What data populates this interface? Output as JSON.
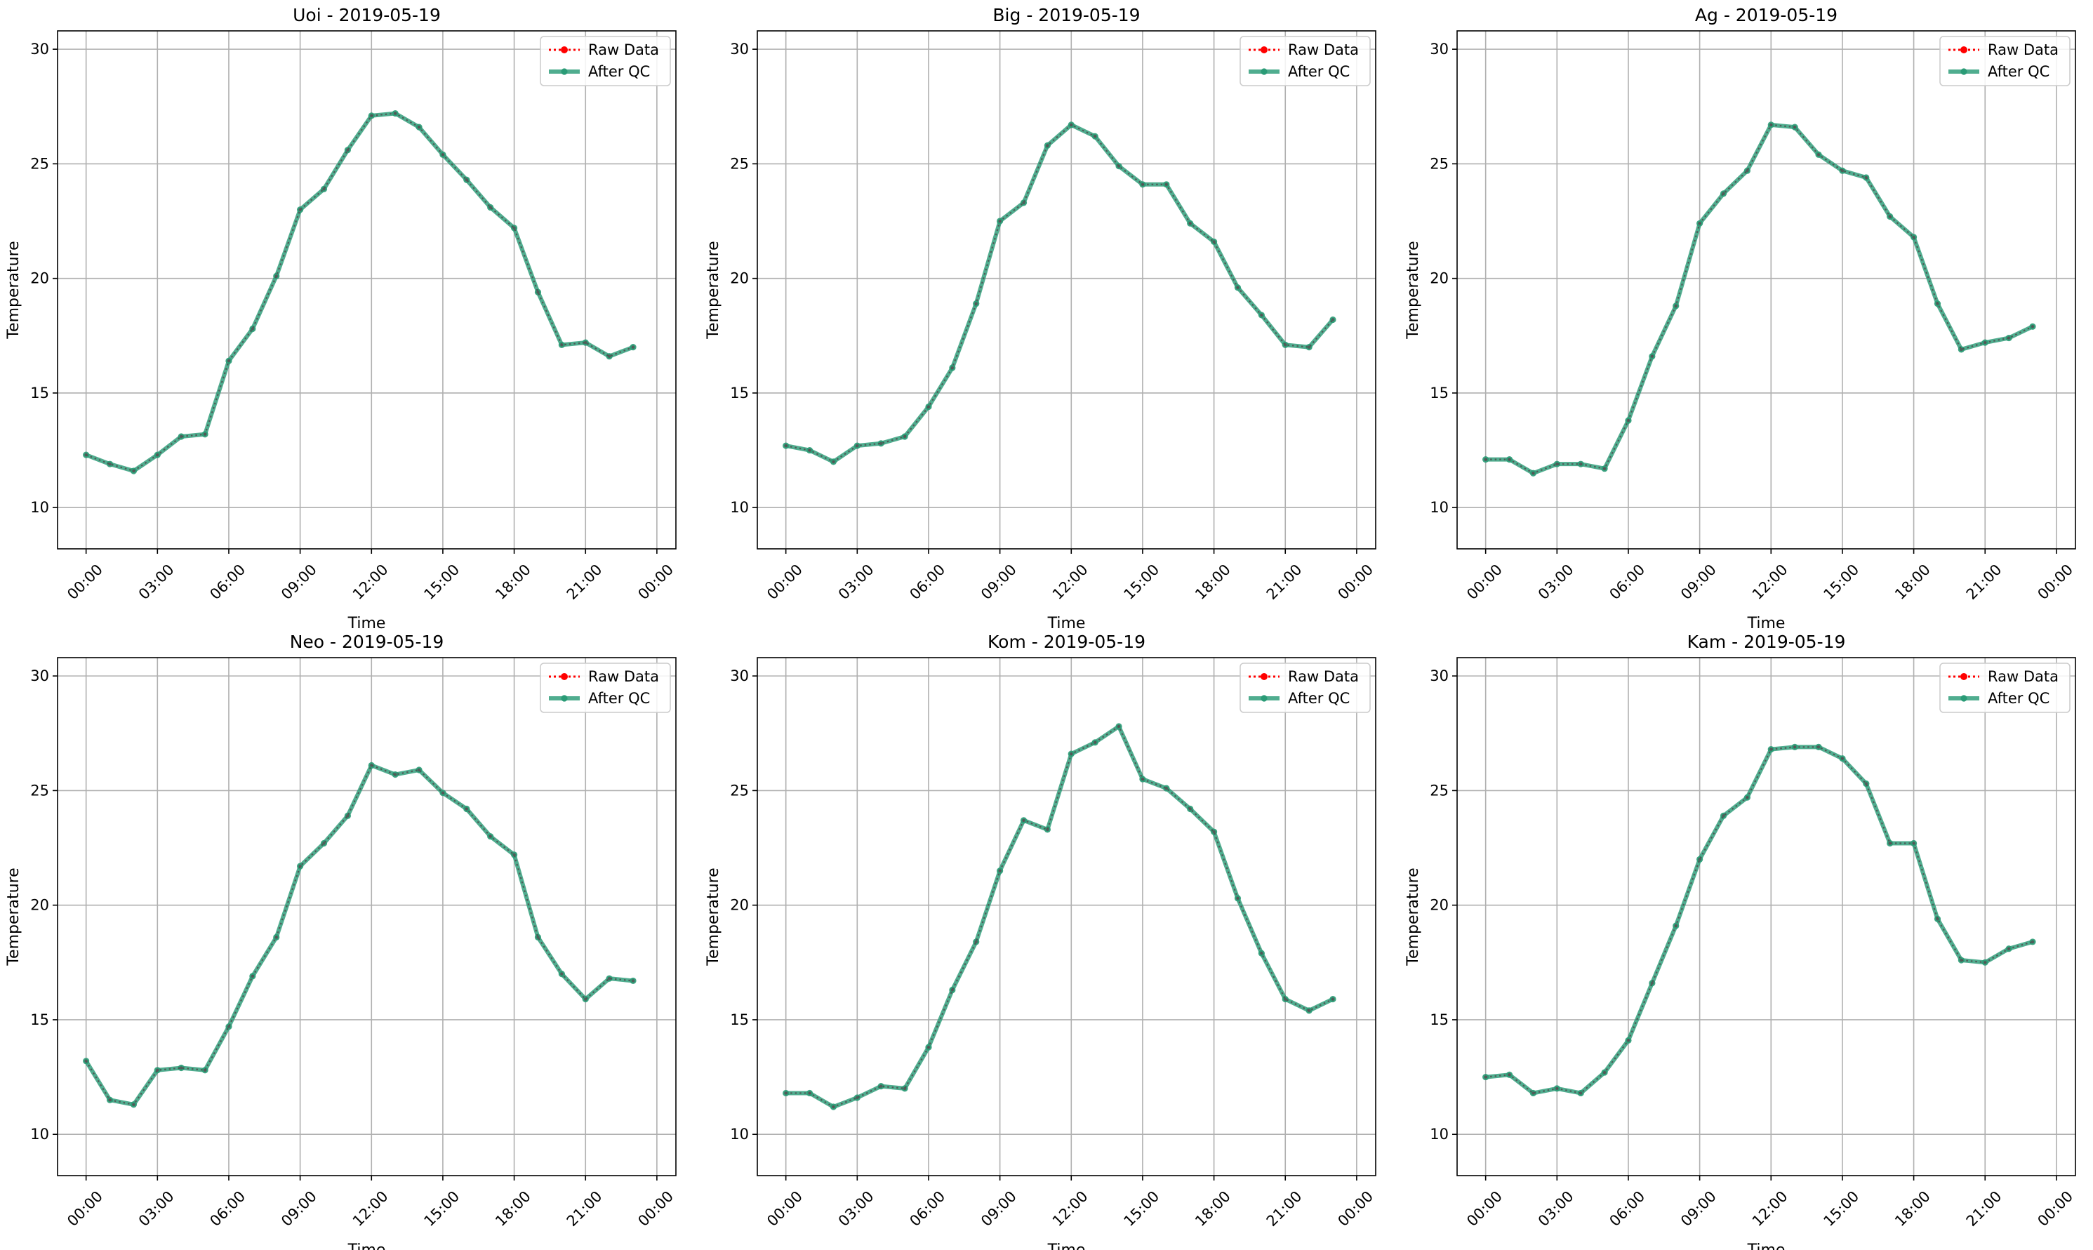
{
  "chart_data": [
    {
      "type": "line",
      "title": "Uoi - 2019-05-19",
      "xlabel": "Time",
      "ylabel": "Temperature",
      "ylim": [
        8.2,
        30.8
      ],
      "yticks": [
        10,
        15,
        20,
        25,
        30
      ],
      "xlim_hours": [
        -1.2,
        24.8
      ],
      "xtick_labels": [
        "00:00",
        "03:00",
        "06:00",
        "09:00",
        "12:00",
        "15:00",
        "18:00",
        "21:00",
        "00:00"
      ],
      "grid": true,
      "legend_position": "top-right",
      "x": [
        "00:00",
        "01:00",
        "02:00",
        "03:00",
        "04:00",
        "05:00",
        "06:00",
        "07:00",
        "08:00",
        "09:00",
        "10:00",
        "11:00",
        "12:00",
        "13:00",
        "14:00",
        "15:00",
        "16:00",
        "17:00",
        "18:00",
        "19:00",
        "20:00",
        "21:00",
        "22:00",
        "23:00"
      ],
      "series": [
        {
          "name": "Raw Data",
          "color": "#ff0000",
          "style": "dotted",
          "values": [
            12.3,
            11.9,
            11.6,
            12.3,
            13.1,
            13.2,
            16.4,
            17.8,
            20.1,
            23.0,
            23.9,
            25.6,
            27.1,
            27.2,
            26.6,
            25.4,
            24.3,
            23.1,
            22.2,
            19.4,
            17.1,
            17.2,
            16.6,
            17.0
          ]
        },
        {
          "name": "After QC",
          "color": "#2a9b76",
          "style": "solid",
          "values": [
            12.3,
            11.9,
            11.6,
            12.3,
            13.1,
            13.2,
            16.4,
            17.8,
            20.1,
            23.0,
            23.9,
            25.6,
            27.1,
            27.2,
            26.6,
            25.4,
            24.3,
            23.1,
            22.2,
            19.4,
            17.1,
            17.2,
            16.6,
            17.0
          ]
        }
      ]
    },
    {
      "type": "line",
      "title": "Big - 2019-05-19",
      "xlabel": "Time",
      "ylabel": "Temperature",
      "ylim": [
        8.2,
        30.8
      ],
      "yticks": [
        10,
        15,
        20,
        25,
        30
      ],
      "xlim_hours": [
        -1.2,
        24.8
      ],
      "xtick_labels": [
        "00:00",
        "03:00",
        "06:00",
        "09:00",
        "12:00",
        "15:00",
        "18:00",
        "21:00",
        "00:00"
      ],
      "grid": true,
      "legend_position": "top-right",
      "x": [
        "00:00",
        "01:00",
        "02:00",
        "03:00",
        "04:00",
        "05:00",
        "06:00",
        "07:00",
        "08:00",
        "09:00",
        "10:00",
        "11:00",
        "12:00",
        "13:00",
        "14:00",
        "15:00",
        "16:00",
        "17:00",
        "18:00",
        "19:00",
        "20:00",
        "21:00",
        "22:00",
        "23:00"
      ],
      "series": [
        {
          "name": "Raw Data",
          "color": "#ff0000",
          "style": "dotted",
          "values": [
            12.7,
            12.5,
            12.0,
            12.7,
            12.8,
            13.1,
            14.4,
            16.1,
            18.9,
            22.5,
            23.3,
            25.8,
            26.7,
            26.2,
            24.9,
            24.1,
            24.1,
            22.4,
            21.6,
            19.6,
            18.4,
            17.1,
            17.0,
            18.2
          ]
        },
        {
          "name": "After QC",
          "color": "#2a9b76",
          "style": "solid",
          "values": [
            12.7,
            12.5,
            12.0,
            12.7,
            12.8,
            13.1,
            14.4,
            16.1,
            18.9,
            22.5,
            23.3,
            25.8,
            26.7,
            26.2,
            24.9,
            24.1,
            24.1,
            22.4,
            21.6,
            19.6,
            18.4,
            17.1,
            17.0,
            18.2
          ]
        }
      ]
    },
    {
      "type": "line",
      "title": "Ag - 2019-05-19",
      "xlabel": "Time",
      "ylabel": "Temperature",
      "ylim": [
        8.2,
        30.8
      ],
      "yticks": [
        10,
        15,
        20,
        25,
        30
      ],
      "xlim_hours": [
        -1.2,
        24.8
      ],
      "xtick_labels": [
        "00:00",
        "03:00",
        "06:00",
        "09:00",
        "12:00",
        "15:00",
        "18:00",
        "21:00",
        "00:00"
      ],
      "grid": true,
      "legend_position": "top-right",
      "x": [
        "00:00",
        "01:00",
        "02:00",
        "03:00",
        "04:00",
        "05:00",
        "06:00",
        "07:00",
        "08:00",
        "09:00",
        "10:00",
        "11:00",
        "12:00",
        "13:00",
        "14:00",
        "15:00",
        "16:00",
        "17:00",
        "18:00",
        "19:00",
        "20:00",
        "21:00",
        "22:00",
        "23:00"
      ],
      "series": [
        {
          "name": "Raw Data",
          "color": "#ff0000",
          "style": "dotted",
          "values": [
            12.1,
            12.1,
            11.5,
            11.9,
            11.9,
            11.7,
            13.8,
            16.6,
            18.8,
            22.4,
            23.7,
            24.7,
            26.7,
            26.6,
            25.4,
            24.7,
            24.4,
            22.7,
            21.8,
            18.9,
            16.9,
            17.2,
            17.4,
            17.9
          ]
        },
        {
          "name": "After QC",
          "color": "#2a9b76",
          "style": "solid",
          "values": [
            12.1,
            12.1,
            11.5,
            11.9,
            11.9,
            11.7,
            13.8,
            16.6,
            18.8,
            22.4,
            23.7,
            24.7,
            26.7,
            26.6,
            25.4,
            24.7,
            24.4,
            22.7,
            21.8,
            18.9,
            16.9,
            17.2,
            17.4,
            17.9
          ]
        }
      ]
    },
    {
      "type": "line",
      "title": "Neo - 2019-05-19",
      "xlabel": "Time",
      "ylabel": "Temperature",
      "ylim": [
        8.2,
        30.8
      ],
      "yticks": [
        10,
        15,
        20,
        25,
        30
      ],
      "xlim_hours": [
        -1.2,
        24.8
      ],
      "xtick_labels": [
        "00:00",
        "03:00",
        "06:00",
        "09:00",
        "12:00",
        "15:00",
        "18:00",
        "21:00",
        "00:00"
      ],
      "grid": true,
      "legend_position": "top-right",
      "x": [
        "00:00",
        "01:00",
        "02:00",
        "03:00",
        "04:00",
        "05:00",
        "06:00",
        "07:00",
        "08:00",
        "09:00",
        "10:00",
        "11:00",
        "12:00",
        "13:00",
        "14:00",
        "15:00",
        "16:00",
        "17:00",
        "18:00",
        "19:00",
        "20:00",
        "21:00",
        "22:00",
        "23:00"
      ],
      "series": [
        {
          "name": "Raw Data",
          "color": "#ff0000",
          "style": "dotted",
          "values": [
            13.2,
            11.5,
            11.3,
            12.8,
            12.9,
            12.8,
            14.7,
            16.9,
            18.6,
            21.7,
            22.7,
            23.9,
            26.1,
            25.7,
            25.9,
            24.9,
            24.2,
            23.0,
            22.2,
            18.6,
            17.0,
            15.9,
            16.8,
            16.7
          ]
        },
        {
          "name": "After QC",
          "color": "#2a9b76",
          "style": "solid",
          "values": [
            13.2,
            11.5,
            11.3,
            12.8,
            12.9,
            12.8,
            14.7,
            16.9,
            18.6,
            21.7,
            22.7,
            23.9,
            26.1,
            25.7,
            25.9,
            24.9,
            24.2,
            23.0,
            22.2,
            18.6,
            17.0,
            15.9,
            16.8,
            16.7
          ]
        }
      ]
    },
    {
      "type": "line",
      "title": "Kom - 2019-05-19",
      "xlabel": "Time",
      "ylabel": "Temperature",
      "ylim": [
        8.2,
        30.8
      ],
      "yticks": [
        10,
        15,
        20,
        25,
        30
      ],
      "xlim_hours": [
        -1.2,
        24.8
      ],
      "xtick_labels": [
        "00:00",
        "03:00",
        "06:00",
        "09:00",
        "12:00",
        "15:00",
        "18:00",
        "21:00",
        "00:00"
      ],
      "grid": true,
      "legend_position": "top-right",
      "x": [
        "00:00",
        "01:00",
        "02:00",
        "03:00",
        "04:00",
        "05:00",
        "06:00",
        "07:00",
        "08:00",
        "09:00",
        "10:00",
        "11:00",
        "12:00",
        "13:00",
        "14:00",
        "15:00",
        "16:00",
        "17:00",
        "18:00",
        "19:00",
        "20:00",
        "21:00",
        "22:00",
        "23:00"
      ],
      "series": [
        {
          "name": "Raw Data",
          "color": "#ff0000",
          "style": "dotted",
          "values": [
            11.8,
            11.8,
            11.2,
            11.6,
            12.1,
            12.0,
            13.8,
            16.3,
            18.4,
            21.5,
            23.7,
            23.3,
            26.6,
            27.1,
            27.8,
            25.5,
            25.1,
            24.2,
            23.2,
            20.3,
            17.9,
            15.9,
            15.4,
            15.9
          ]
        },
        {
          "name": "After QC",
          "color": "#2a9b76",
          "style": "solid",
          "values": [
            11.8,
            11.8,
            11.2,
            11.6,
            12.1,
            12.0,
            13.8,
            16.3,
            18.4,
            21.5,
            23.7,
            23.3,
            26.6,
            27.1,
            27.8,
            25.5,
            25.1,
            24.2,
            23.2,
            20.3,
            17.9,
            15.9,
            15.4,
            15.9
          ]
        }
      ]
    },
    {
      "type": "line",
      "title": "Kam - 2019-05-19",
      "xlabel": "Time",
      "ylabel": "Temperature",
      "ylim": [
        8.2,
        30.8
      ],
      "yticks": [
        10,
        15,
        20,
        25,
        30
      ],
      "xlim_hours": [
        -1.2,
        24.8
      ],
      "xtick_labels": [
        "00:00",
        "03:00",
        "06:00",
        "09:00",
        "12:00",
        "15:00",
        "18:00",
        "21:00",
        "00:00"
      ],
      "grid": true,
      "legend_position": "top-right",
      "x": [
        "00:00",
        "01:00",
        "02:00",
        "03:00",
        "04:00",
        "05:00",
        "06:00",
        "07:00",
        "08:00",
        "09:00",
        "10:00",
        "11:00",
        "12:00",
        "13:00",
        "14:00",
        "15:00",
        "16:00",
        "17:00",
        "18:00",
        "19:00",
        "20:00",
        "21:00",
        "22:00",
        "23:00"
      ],
      "series": [
        {
          "name": "Raw Data",
          "color": "#ff0000",
          "style": "dotted",
          "values": [
            12.5,
            12.6,
            11.8,
            12.0,
            11.8,
            12.7,
            14.1,
            16.6,
            19.1,
            22.0,
            23.9,
            24.7,
            26.8,
            26.9,
            26.9,
            26.4,
            25.3,
            22.7,
            22.7,
            19.4,
            17.6,
            17.5,
            18.1,
            18.4
          ]
        },
        {
          "name": "After QC",
          "color": "#2a9b76",
          "style": "solid",
          "values": [
            12.5,
            12.6,
            11.8,
            12.0,
            11.8,
            12.7,
            14.1,
            16.6,
            19.1,
            22.0,
            23.9,
            24.7,
            26.8,
            26.9,
            26.9,
            26.4,
            25.3,
            22.7,
            22.7,
            19.4,
            17.6,
            17.5,
            18.1,
            18.4
          ]
        }
      ]
    }
  ]
}
